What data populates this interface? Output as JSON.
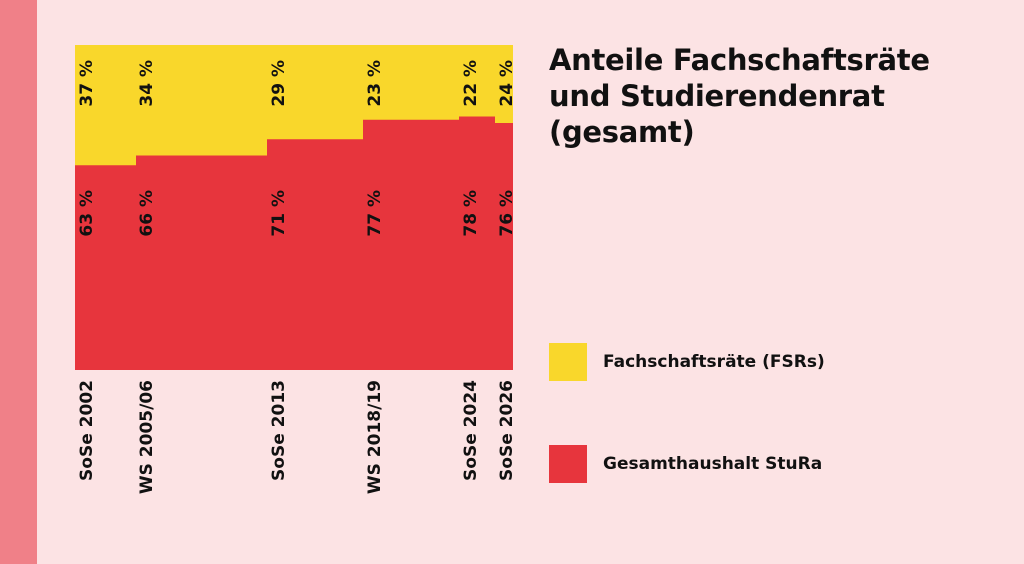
{
  "title_lines": [
    "Anteile Fachschaftsräte",
    "und Studierendenrat",
    "(gesamt)"
  ],
  "legend": [
    {
      "label": "Fachschaftsräte (FSRs)",
      "color": "#f9d72b"
    },
    {
      "label": "Gesamthaushalt StuRa",
      "color": "#e7353d"
    }
  ],
  "chart_data": {
    "type": "area",
    "title": "Anteile Fachschaftsräte und Studierendenrat (gesamt)",
    "x_labels": [
      "SoSe 2002",
      "WS 2005/06",
      "SoSe 2013",
      "WS 2018/19",
      "SoSe 2024",
      "SoSe 2026"
    ],
    "series": [
      {
        "name": "Fachschaftsräte (FSRs)",
        "values": [
          37,
          34,
          29,
          23,
          22,
          24
        ],
        "labels": [
          "37 %",
          "34 %",
          "29 %",
          "23 %",
          "22 %",
          "24 %"
        ],
        "color": "#f9d72b"
      },
      {
        "name": "Gesamthaushalt StuRa",
        "values": [
          63,
          66,
          71,
          77,
          78,
          76
        ],
        "labels": [
          "63 %",
          "66 %",
          "71 %",
          "77 %",
          "78 %",
          "76 %"
        ],
        "color": "#e7353d"
      }
    ],
    "ylim": [
      0,
      100
    ],
    "stacked": true,
    "step": true,
    "grid": false,
    "legend_position": "right"
  }
}
